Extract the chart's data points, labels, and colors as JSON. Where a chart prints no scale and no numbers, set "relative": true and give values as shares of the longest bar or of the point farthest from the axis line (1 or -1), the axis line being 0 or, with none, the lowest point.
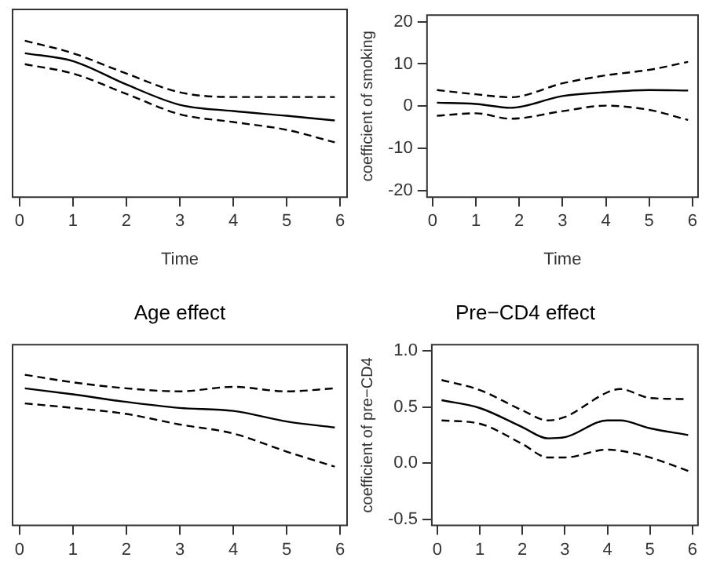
{
  "chart_data": [
    {
      "type": "line",
      "xlabel": "Time",
      "relative": true,
      "x": [
        0.1,
        1,
        2,
        3,
        4,
        5,
        5.9
      ],
      "xlim": [
        -0.13,
        6.13
      ],
      "xticks": [
        0,
        1,
        2,
        3,
        4,
        5,
        6
      ],
      "series": [
        {
          "color": "#000000",
          "line_style": "solid",
          "values": [
            0.92,
            0.87,
            0.72,
            0.59,
            0.55,
            0.52,
            0.49
          ]
        },
        {
          "color": "#000000",
          "line_style": "dashed",
          "values": [
            1,
            0.92,
            0.79,
            0.67,
            0.64,
            0.64,
            0.64
          ]
        },
        {
          "color": "#000000",
          "line_style": "dashed",
          "values": [
            0.85,
            0.79,
            0.66,
            0.53,
            0.48,
            0.43,
            0.35
          ]
        }
      ]
    },
    {
      "type": "line",
      "xlabel": "Time",
      "ylabel": "coefficient of smoking",
      "x": [
        0.1,
        1,
        1.8,
        3,
        4,
        5,
        5.9
      ],
      "xlim": [
        -0.13,
        6.13
      ],
      "xticks": [
        0,
        1,
        2,
        3,
        4,
        5,
        6
      ],
      "ylim": [
        -21.6,
        21.6
      ],
      "yticks": [
        -20,
        -10,
        0,
        10,
        20
      ],
      "series": [
        {
          "color": "#000000",
          "line_style": "solid",
          "values": [
            0.8,
            0.5,
            -0.4,
            2.4,
            3.3,
            3.8,
            3.7
          ]
        },
        {
          "color": "#000000",
          "line_style": "dashed",
          "values": [
            3.8,
            2.8,
            2.1,
            5.4,
            7.3,
            8.6,
            10.5
          ]
        },
        {
          "color": "#000000",
          "line_style": "dashed",
          "values": [
            -2.3,
            -1.7,
            -3.0,
            -1.2,
            0.1,
            -0.9,
            -3.3
          ]
        }
      ]
    },
    {
      "type": "line",
      "title": "Age effect",
      "relative": true,
      "x": [
        0.1,
        1,
        2,
        3,
        4,
        5,
        5.9
      ],
      "xlim": [
        -0.13,
        6.13
      ],
      "xticks": [
        0,
        1,
        2,
        3,
        4,
        5,
        6
      ],
      "series": [
        {
          "color": "#000000",
          "line_style": "solid",
          "values": [
            0.91,
            0.87,
            0.82,
            0.78,
            0.76,
            0.69,
            0.65
          ]
        },
        {
          "color": "#000000",
          "line_style": "dashed",
          "values": [
            1,
            0.95,
            0.91,
            0.89,
            0.92,
            0.89,
            0.91
          ]
        },
        {
          "color": "#000000",
          "line_style": "dashed",
          "values": [
            0.81,
            0.78,
            0.74,
            0.67,
            0.61,
            0.49,
            0.39
          ]
        }
      ]
    },
    {
      "type": "line",
      "title": "Pre−CD4 effect",
      "ylabel": "coefficient of pre−CD4",
      "x": [
        0.1,
        1,
        2,
        2.6,
        3,
        4,
        4.3,
        5,
        5.9
      ],
      "xlim": [
        -0.13,
        6.13
      ],
      "xticks": [
        0,
        1,
        2,
        3,
        4,
        5,
        6
      ],
      "ylim": [
        -0.556,
        1.055
      ],
      "yticks": [
        -0.5,
        {
          "value": 0,
          "label": "0.0"
        },
        0.5,
        {
          "value": 1,
          "label": "1.0"
        }
      ],
      "series": [
        {
          "color": "#000000",
          "line_style": "solid",
          "values": [
            0.56,
            0.49,
            0.32,
            0.22,
            0.23,
            0.38,
            0.38,
            0.31,
            0.25
          ]
        },
        {
          "color": "#000000",
          "line_style": "dashed",
          "values": [
            0.74,
            0.65,
            0.47,
            0.38,
            0.41,
            0.63,
            0.66,
            0.58,
            0.57
          ]
        },
        {
          "color": "#000000",
          "line_style": "dashed",
          "values": [
            0.38,
            0.35,
            0.17,
            0.05,
            0.05,
            0.12,
            0.11,
            0.05,
            -0.07
          ]
        }
      ]
    }
  ]
}
